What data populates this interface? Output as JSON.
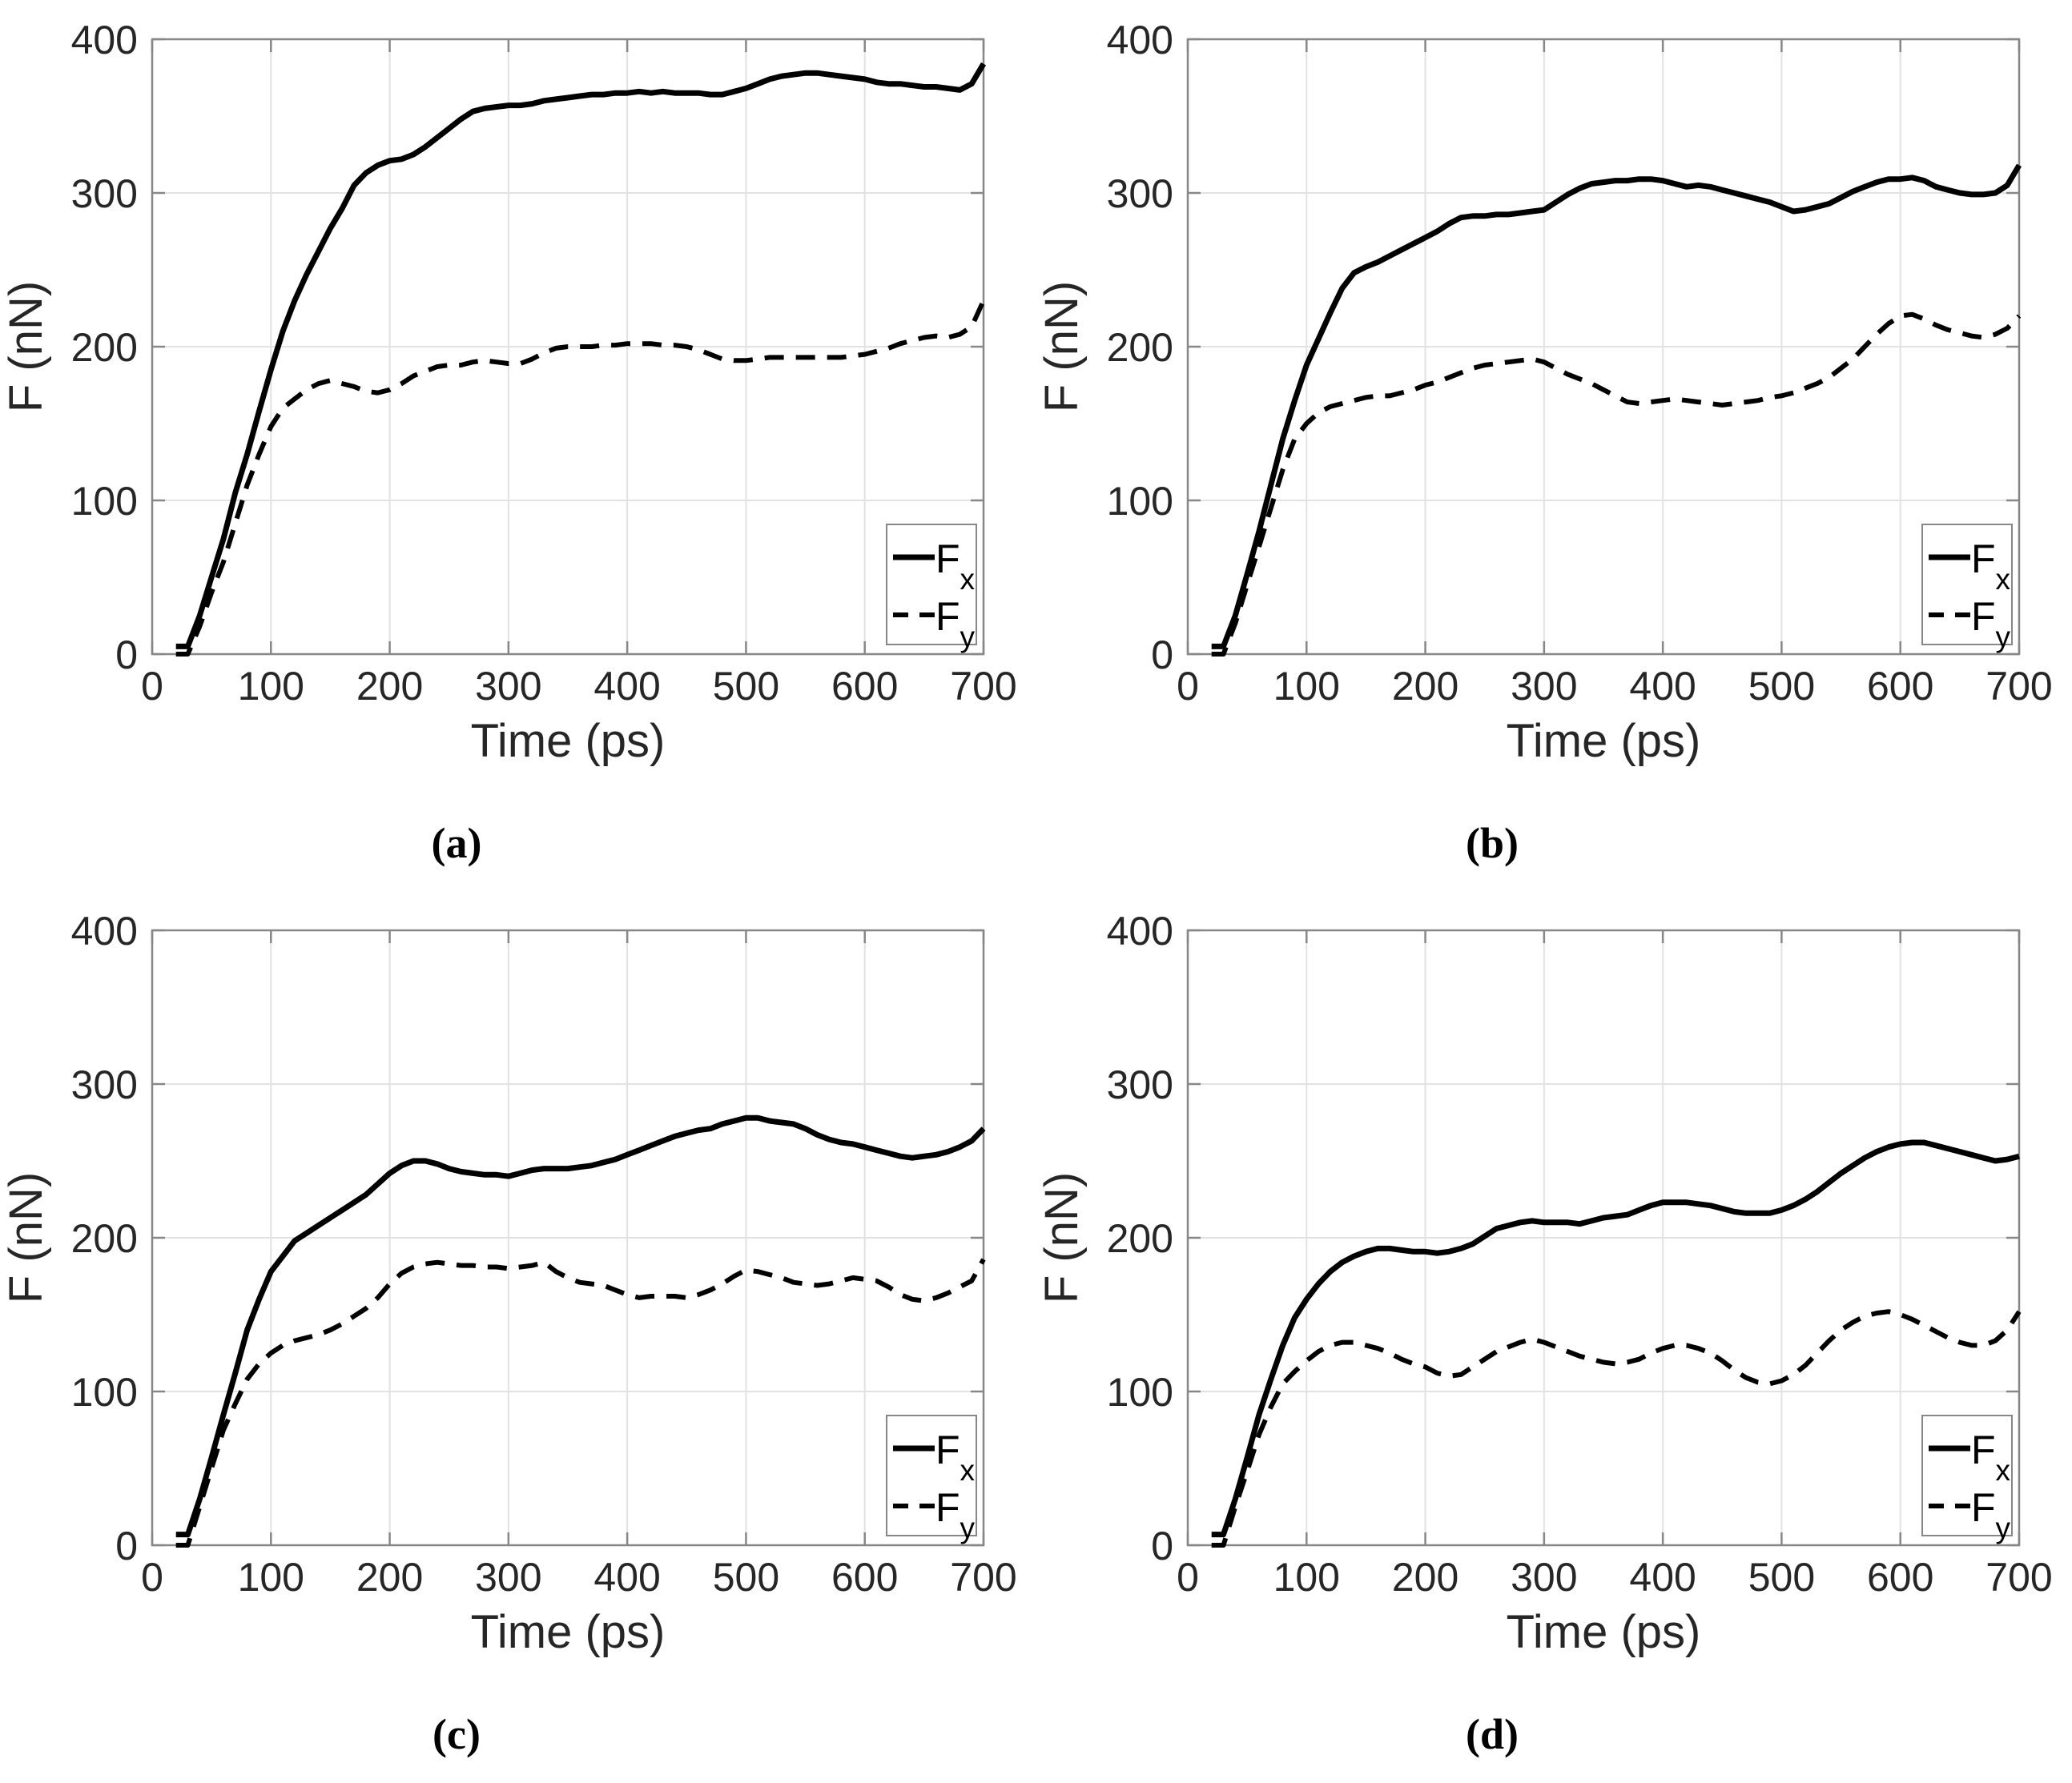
{
  "figure": {
    "background": "#ffffff",
    "text_color": "#262626",
    "axis_color": "#878787",
    "grid_color": "#e2e2e2",
    "line_color": "#000000",
    "panels": [
      {
        "caption": "(a)"
      },
      {
        "caption": "(b)"
      },
      {
        "caption": "(c)"
      },
      {
        "caption": "(d)"
      }
    ]
  },
  "chart_data": [
    {
      "type": "line",
      "title": "(a)",
      "xlabel": "Time (ps)",
      "ylabel": "F (nN)",
      "xlim": [
        0,
        700
      ],
      "ylim": [
        0,
        400
      ],
      "xticks": [
        0,
        100,
        200,
        300,
        400,
        500,
        600,
        700
      ],
      "yticks": [
        0,
        100,
        200,
        300,
        400
      ],
      "grid": true,
      "legend_position": "bottom-right",
      "x": [
        20,
        30,
        40,
        50,
        60,
        70,
        80,
        90,
        100,
        110,
        120,
        130,
        140,
        150,
        160,
        170,
        180,
        190,
        200,
        210,
        220,
        230,
        240,
        250,
        260,
        270,
        280,
        290,
        300,
        310,
        320,
        330,
        340,
        350,
        360,
        370,
        380,
        390,
        400,
        410,
        420,
        430,
        440,
        450,
        460,
        470,
        480,
        490,
        500,
        510,
        520,
        530,
        540,
        550,
        560,
        570,
        580,
        590,
        600,
        610,
        620,
        630,
        640,
        650,
        660,
        670,
        680,
        690,
        700
      ],
      "series": [
        {
          "name": "Fx",
          "label_main": "F",
          "label_sub": "x",
          "style": "solid",
          "values": [
            5,
            5,
            25,
            50,
            75,
            105,
            130,
            158,
            185,
            210,
            230,
            247,
            262,
            277,
            290,
            305,
            313,
            318,
            321,
            322,
            325,
            330,
            336,
            342,
            348,
            353,
            355,
            356,
            357,
            357,
            358,
            360,
            361,
            362,
            363,
            364,
            364,
            365,
            365,
            366,
            365,
            366,
            365,
            365,
            365,
            364,
            364,
            366,
            368,
            371,
            374,
            376,
            377,
            378,
            378,
            377,
            376,
            375,
            374,
            372,
            371,
            371,
            370,
            369,
            369,
            368,
            367,
            371,
            384
          ]
        },
        {
          "name": "Fy",
          "label_main": "F",
          "label_sub": "y",
          "style": "dashed",
          "values": [
            0,
            0,
            18,
            40,
            60,
            85,
            110,
            130,
            148,
            160,
            166,
            172,
            176,
            178,
            176,
            174,
            171,
            170,
            172,
            176,
            181,
            184,
            187,
            188,
            188,
            190,
            191,
            190,
            189,
            189,
            192,
            196,
            199,
            200,
            200,
            200,
            201,
            201,
            202,
            202,
            202,
            201,
            201,
            200,
            198,
            195,
            192,
            191,
            191,
            192,
            193,
            193,
            193,
            193,
            193,
            193,
            193,
            194,
            195,
            197,
            199,
            202,
            204,
            206,
            207,
            206,
            208,
            213,
            230
          ]
        }
      ]
    },
    {
      "type": "line",
      "title": "(b)",
      "xlabel": "Time (ps)",
      "ylabel": "F (nN)",
      "xlim": [
        0,
        700
      ],
      "ylim": [
        0,
        400
      ],
      "xticks": [
        0,
        100,
        200,
        300,
        400,
        500,
        600,
        700
      ],
      "yticks": [
        0,
        100,
        200,
        300,
        400
      ],
      "grid": true,
      "legend_position": "bottom-right",
      "x": [
        20,
        30,
        40,
        50,
        60,
        70,
        80,
        90,
        100,
        110,
        120,
        130,
        140,
        150,
        160,
        170,
        180,
        190,
        200,
        210,
        220,
        230,
        240,
        250,
        260,
        270,
        280,
        290,
        300,
        310,
        320,
        330,
        340,
        350,
        360,
        370,
        380,
        390,
        400,
        410,
        420,
        430,
        440,
        450,
        460,
        470,
        480,
        490,
        500,
        510,
        520,
        530,
        540,
        550,
        560,
        570,
        580,
        590,
        600,
        610,
        620,
        630,
        640,
        650,
        660,
        670,
        680,
        690,
        700
      ],
      "series": [
        {
          "name": "Fx",
          "label_main": "F",
          "label_sub": "x",
          "style": "solid",
          "values": [
            5,
            5,
            25,
            52,
            80,
            110,
            140,
            165,
            188,
            205,
            222,
            238,
            248,
            252,
            255,
            259,
            263,
            267,
            271,
            275,
            280,
            284,
            285,
            285,
            286,
            286,
            287,
            288,
            289,
            294,
            299,
            303,
            306,
            307,
            308,
            308,
            309,
            309,
            308,
            306,
            304,
            305,
            304,
            302,
            300,
            298,
            296,
            294,
            291,
            288,
            289,
            291,
            293,
            297,
            301,
            304,
            307,
            309,
            309,
            310,
            308,
            304,
            302,
            300,
            299,
            299,
            300,
            305,
            318
          ]
        },
        {
          "name": "Fy",
          "label_main": "F",
          "label_sub": "y",
          "style": "dashed",
          "values": [
            0,
            0,
            20,
            45,
            70,
            95,
            120,
            140,
            150,
            157,
            161,
            163,
            165,
            167,
            168,
            168,
            170,
            172,
            175,
            177,
            180,
            183,
            186,
            188,
            189,
            190,
            191,
            192,
            190,
            186,
            182,
            179,
            176,
            172,
            168,
            164,
            163,
            164,
            165,
            166,
            165,
            164,
            163,
            162,
            163,
            164,
            165,
            167,
            168,
            170,
            173,
            176,
            180,
            186,
            192,
            200,
            208,
            215,
            220,
            221,
            218,
            214,
            211,
            209,
            207,
            206,
            208,
            212,
            220
          ]
        }
      ]
    },
    {
      "type": "line",
      "title": "(c)",
      "xlabel": "Time (ps)",
      "ylabel": "F (nN)",
      "xlim": [
        0,
        700
      ],
      "ylim": [
        0,
        400
      ],
      "xticks": [
        0,
        100,
        200,
        300,
        400,
        500,
        600,
        700
      ],
      "yticks": [
        0,
        100,
        200,
        300,
        400
      ],
      "grid": true,
      "legend_position": "bottom-right",
      "x": [
        20,
        30,
        40,
        50,
        60,
        70,
        80,
        90,
        100,
        110,
        120,
        130,
        140,
        150,
        160,
        170,
        180,
        190,
        200,
        210,
        220,
        230,
        240,
        250,
        260,
        270,
        280,
        290,
        300,
        310,
        320,
        330,
        340,
        350,
        360,
        370,
        380,
        390,
        400,
        410,
        420,
        430,
        440,
        450,
        460,
        470,
        480,
        490,
        500,
        510,
        520,
        530,
        540,
        550,
        560,
        570,
        580,
        590,
        600,
        610,
        620,
        630,
        640,
        650,
        660,
        670,
        680,
        690,
        700
      ],
      "series": [
        {
          "name": "Fx",
          "label_main": "F",
          "label_sub": "x",
          "style": "solid",
          "values": [
            7,
            7,
            30,
            57,
            85,
            112,
            140,
            160,
            178,
            188,
            198,
            203,
            208,
            213,
            218,
            223,
            228,
            235,
            242,
            247,
            250,
            250,
            248,
            245,
            243,
            242,
            241,
            241,
            240,
            242,
            244,
            245,
            245,
            245,
            246,
            247,
            249,
            251,
            254,
            257,
            260,
            263,
            266,
            268,
            270,
            271,
            274,
            276,
            278,
            278,
            276,
            275,
            274,
            271,
            267,
            264,
            262,
            261,
            259,
            257,
            255,
            253,
            252,
            253,
            254,
            256,
            259,
            263,
            271
          ]
        },
        {
          "name": "Fy",
          "label_main": "F",
          "label_sub": "y",
          "style": "dashed",
          "values": [
            0,
            0,
            25,
            50,
            75,
            92,
            108,
            118,
            125,
            130,
            133,
            135,
            137,
            140,
            144,
            149,
            154,
            161,
            170,
            177,
            181,
            183,
            184,
            183,
            182,
            182,
            181,
            181,
            180,
            181,
            182,
            184,
            178,
            174,
            171,
            170,
            169,
            166,
            163,
            161,
            162,
            162,
            162,
            161,
            163,
            166,
            170,
            175,
            179,
            178,
            176,
            174,
            171,
            170,
            169,
            170,
            172,
            174,
            173,
            172,
            168,
            163,
            160,
            159,
            161,
            164,
            168,
            172,
            186
          ]
        }
      ]
    },
    {
      "type": "line",
      "title": "(d)",
      "xlabel": "Time (ps)",
      "ylabel": "F (nN)",
      "xlim": [
        0,
        700
      ],
      "ylim": [
        0,
        400
      ],
      "xticks": [
        0,
        100,
        200,
        300,
        400,
        500,
        600,
        700
      ],
      "yticks": [
        0,
        100,
        200,
        300,
        400
      ],
      "grid": true,
      "legend_position": "bottom-right",
      "x": [
        20,
        30,
        40,
        50,
        60,
        70,
        80,
        90,
        100,
        110,
        120,
        130,
        140,
        150,
        160,
        170,
        180,
        190,
        200,
        210,
        220,
        230,
        240,
        250,
        260,
        270,
        280,
        290,
        300,
        310,
        320,
        330,
        340,
        350,
        360,
        370,
        380,
        390,
        400,
        410,
        420,
        430,
        440,
        450,
        460,
        470,
        480,
        490,
        500,
        510,
        520,
        530,
        540,
        550,
        560,
        570,
        580,
        590,
        600,
        610,
        620,
        630,
        640,
        650,
        660,
        670,
        680,
        690,
        700
      ],
      "series": [
        {
          "name": "Fx",
          "label_main": "F",
          "label_sub": "x",
          "style": "solid",
          "values": [
            7,
            7,
            30,
            57,
            85,
            108,
            130,
            148,
            160,
            170,
            178,
            184,
            188,
            191,
            193,
            193,
            192,
            191,
            191,
            190,
            191,
            193,
            196,
            201,
            206,
            208,
            210,
            211,
            210,
            210,
            210,
            209,
            211,
            213,
            214,
            215,
            218,
            221,
            223,
            223,
            223,
            222,
            221,
            219,
            217,
            216,
            216,
            216,
            218,
            221,
            225,
            230,
            236,
            242,
            247,
            252,
            256,
            259,
            261,
            262,
            262,
            260,
            258,
            256,
            254,
            252,
            250,
            251,
            253
          ]
        },
        {
          "name": "Fy",
          "label_main": "F",
          "label_sub": "y",
          "style": "dashed",
          "values": [
            0,
            0,
            25,
            48,
            72,
            90,
            105,
            113,
            120,
            126,
            130,
            132,
            132,
            130,
            128,
            125,
            121,
            118,
            116,
            112,
            110,
            111,
            116,
            121,
            126,
            129,
            132,
            134,
            132,
            129,
            126,
            123,
            121,
            119,
            118,
            119,
            121,
            125,
            128,
            130,
            130,
            128,
            125,
            120,
            114,
            109,
            106,
            105,
            107,
            111,
            117,
            125,
            133,
            140,
            145,
            149,
            151,
            152,
            150,
            147,
            143,
            139,
            135,
            132,
            130,
            130,
            133,
            140,
            152
          ]
        }
      ]
    }
  ]
}
